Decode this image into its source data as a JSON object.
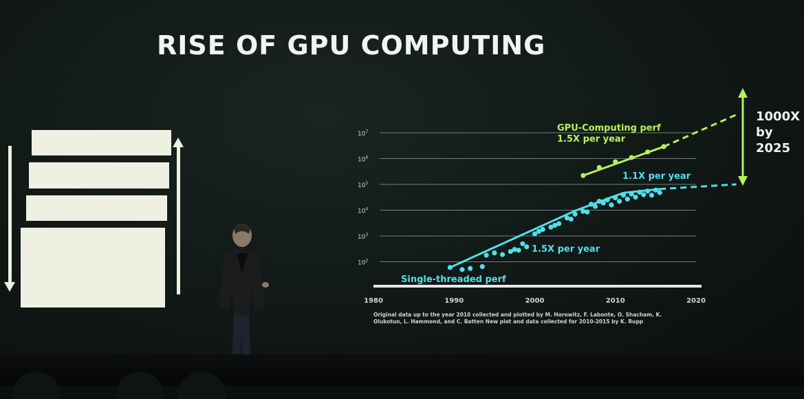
{
  "slide": {
    "title": "RISE OF GPU COMPUTING",
    "source_note": "Original data up to the year 2010 collected and plotted by M. Horowitz, F. Labonte, O. Shacham, K. Olukotun, L. Hammond, and C. Batten New plot and data collected for 2010-2015 by K. Rupp"
  },
  "colors": {
    "gpu": "#b6f25a",
    "single": "#4fe0ea",
    "text": "#f2f4f2",
    "background": "#121a17"
  },
  "chart_data": {
    "type": "scatter",
    "scale_y": "log",
    "title": "",
    "xlabel": "",
    "ylabel": "",
    "xlim": [
      1980,
      2020
    ],
    "ylim": [
      10,
      10000000
    ],
    "x_ticks": [
      "1980",
      "1990",
      "2000",
      "2010",
      "2020"
    ],
    "y_ticks": [
      {
        "base": "10",
        "exp": "2"
      },
      {
        "base": "10",
        "exp": "3"
      },
      {
        "base": "10",
        "exp": "4"
      },
      {
        "base": "10",
        "exp": "5"
      },
      {
        "base": "10",
        "exp": "6"
      },
      {
        "base": "10",
        "exp": "7"
      }
    ],
    "grid": true,
    "series": [
      {
        "name": "Single-threaded perf",
        "color": "#4fe0ea",
        "points": [
          [
            1989.5,
            60
          ],
          [
            1991,
            50
          ],
          [
            1992,
            55
          ],
          [
            1993.5,
            65
          ],
          [
            1994,
            180
          ],
          [
            1995,
            220
          ],
          [
            1996,
            190
          ],
          [
            1997,
            250
          ],
          [
            1997.5,
            300
          ],
          [
            1998,
            280
          ],
          [
            1998.5,
            500
          ],
          [
            1999,
            380
          ],
          [
            2000,
            1200
          ],
          [
            2000.5,
            1500
          ],
          [
            2001,
            1800
          ],
          [
            2002,
            2200
          ],
          [
            2002.5,
            2600
          ],
          [
            2003,
            3000
          ],
          [
            2004,
            5000
          ],
          [
            2004.5,
            4500
          ],
          [
            2005,
            7000
          ],
          [
            2006,
            9000
          ],
          [
            2006.5,
            8500
          ],
          [
            2007,
            17000
          ],
          [
            2007.5,
            14000
          ],
          [
            2008,
            22000
          ],
          [
            2008.5,
            19000
          ],
          [
            2009,
            25000
          ],
          [
            2009.5,
            16000
          ],
          [
            2010,
            30000
          ],
          [
            2010.5,
            22000
          ],
          [
            2011,
            38000
          ],
          [
            2011.5,
            27000
          ],
          [
            2012,
            42000
          ],
          [
            2012.5,
            32000
          ],
          [
            2013,
            50000
          ],
          [
            2013.5,
            40000
          ],
          [
            2014,
            55000
          ],
          [
            2014.5,
            38000
          ],
          [
            2015,
            60000
          ],
          [
            2015.5,
            48000
          ]
        ],
        "trend_solid": [
          [
            1989.5,
            60
          ],
          [
            2005,
            9500
          ],
          [
            2011,
            47000
          ],
          [
            2015.5,
            66000
          ]
        ],
        "trend_dashed": [
          [
            2015.5,
            66000
          ],
          [
            2025,
            100000
          ]
        ]
      },
      {
        "name": "GPU-Computing perf",
        "color": "#b6f25a",
        "points": [
          [
            2006,
            220000
          ],
          [
            2008,
            450000
          ],
          [
            2010,
            750000
          ],
          [
            2012,
            1100000
          ],
          [
            2014,
            1800000
          ],
          [
            2016,
            2900000
          ]
        ],
        "trend_solid": [
          [
            2006,
            220000
          ],
          [
            2016,
            2900000
          ]
        ],
        "trend_dashed": [
          [
            2016,
            2900000
          ],
          [
            2025,
            50000000
          ]
        ]
      }
    ],
    "annotations": {
      "single_label": "Single-threaded perf",
      "single_rate_early": "1.5X per year",
      "single_rate_late": "1.1X per year",
      "gpu_label": "GPU-Computing perf",
      "gpu_rate": "1.5X per year",
      "gap_label_1": "1000X",
      "gap_label_2": "by",
      "gap_label_3": "2025"
    }
  }
}
